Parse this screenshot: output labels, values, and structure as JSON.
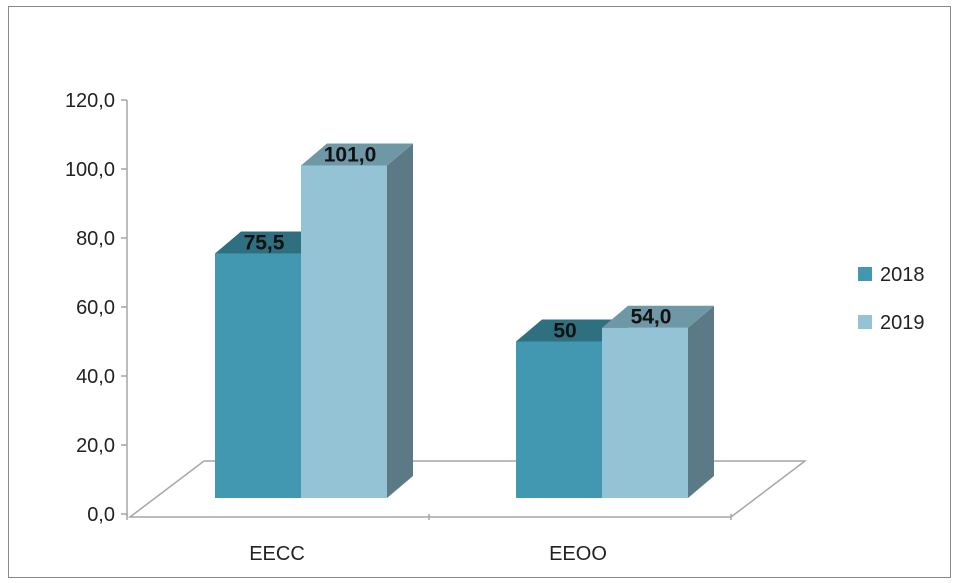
{
  "chart_data": {
    "type": "bar",
    "title": "",
    "xlabel": "",
    "ylabel": "",
    "categories": [
      "EECC",
      "EEOO"
    ],
    "series": [
      {
        "name": "2018",
        "values": [
          75.5,
          50
        ],
        "labels": [
          "75,5",
          "50"
        ],
        "color": "#4298B0",
        "top_color": "#2E7080",
        "side_color": "#2F6F80"
      },
      {
        "name": "2019",
        "values": [
          101.0,
          54.0
        ],
        "labels": [
          "101,0",
          "54,0"
        ],
        "color": "#93C3D4",
        "top_color": "#6F98A7",
        "side_color": "#5C7A86"
      }
    ],
    "ylim": [
      0,
      120
    ],
    "yticks": [
      "0,0",
      "20,0",
      "40,0",
      "60,0",
      "80,0",
      "100,0",
      "120,0"
    ],
    "ytick_values": [
      0,
      20,
      40,
      60,
      80,
      100,
      120
    ],
    "legend_position": "right",
    "grid": false,
    "style": "3d-clustered-column"
  }
}
